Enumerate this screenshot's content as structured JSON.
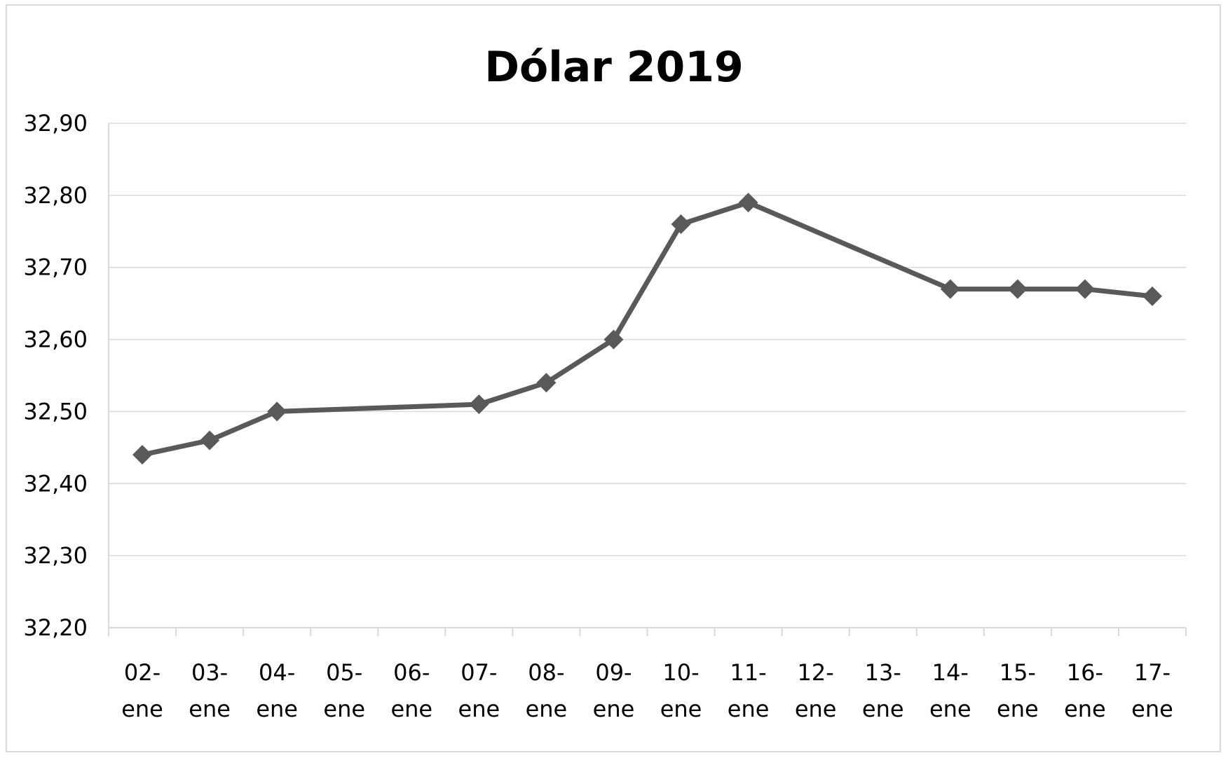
{
  "chart_data": {
    "type": "line",
    "title": "Dólar 2019",
    "xlabel": "",
    "ylabel": "",
    "categories": [
      [
        "02-",
        "ene"
      ],
      [
        "03-",
        "ene"
      ],
      [
        "04-",
        "ene"
      ],
      [
        "05-",
        "ene"
      ],
      [
        "06-",
        "ene"
      ],
      [
        "07-",
        "ene"
      ],
      [
        "08-",
        "ene"
      ],
      [
        "09-",
        "ene"
      ],
      [
        "10-",
        "ene"
      ],
      [
        "11-",
        "ene"
      ],
      [
        "12-",
        "ene"
      ],
      [
        "13-",
        "ene"
      ],
      [
        "14-",
        "ene"
      ],
      [
        "15-",
        "ene"
      ],
      [
        "16-",
        "ene"
      ],
      [
        "17-",
        "ene"
      ]
    ],
    "series": [
      {
        "color": "#595959",
        "marker": "diamond",
        "values": [
          32.44,
          32.46,
          32.5,
          null,
          null,
          32.51,
          32.54,
          32.6,
          32.76,
          32.79,
          null,
          null,
          32.67,
          32.67,
          32.67,
          32.66
        ]
      }
    ],
    "ylim": [
      32.2,
      32.9
    ],
    "yticks": [
      "32,20",
      "32,30",
      "32,40",
      "32,50",
      "32,60",
      "32,70",
      "32,80",
      "32,90"
    ],
    "ytick_values": [
      32.2,
      32.3,
      32.4,
      32.5,
      32.6,
      32.7,
      32.8,
      32.9
    ],
    "grid": true,
    "legend": "none",
    "gridline_color": "#d9d9d9",
    "axis_color": "#d9d9d9"
  }
}
